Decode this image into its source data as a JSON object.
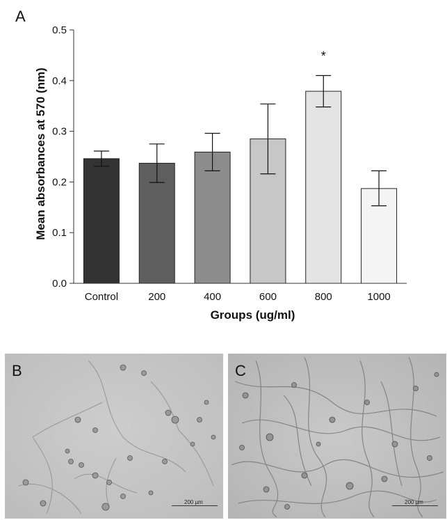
{
  "panels": {
    "a_label": "A",
    "b_label": "B",
    "c_label": "C",
    "b_scale_text": "200 µm",
    "c_scale_text": "200 µm"
  },
  "colors": {
    "bars": [
      "#333333",
      "#5e5e5e",
      "#8c8c8c",
      "#c7c7c7",
      "#e4e4e4",
      "#f4f4f4"
    ],
    "micrograph_bg": "#c8c8c8"
  },
  "chart_data": {
    "type": "bar",
    "title": "",
    "xlabel": "Groups (ug/ml)",
    "ylabel": "Mean absorbances at 570 (nm)",
    "categories": [
      "Control",
      "200",
      "400",
      "600",
      "800",
      "1000"
    ],
    "values": [
      0.246,
      0.237,
      0.259,
      0.285,
      0.379,
      0.187
    ],
    "error_low": [
      0.231,
      0.199,
      0.222,
      0.216,
      0.348,
      0.153
    ],
    "error_high": [
      0.261,
      0.275,
      0.296,
      0.354,
      0.41,
      0.222
    ],
    "annotations": [
      {
        "category": "800",
        "text": "*"
      }
    ],
    "ylim": [
      0,
      0.5
    ],
    "yticks": [
      "0.0",
      "0.1",
      "0.2",
      "0.3",
      "0.4",
      "0.5"
    ],
    "grid": false,
    "legend": "none"
  }
}
